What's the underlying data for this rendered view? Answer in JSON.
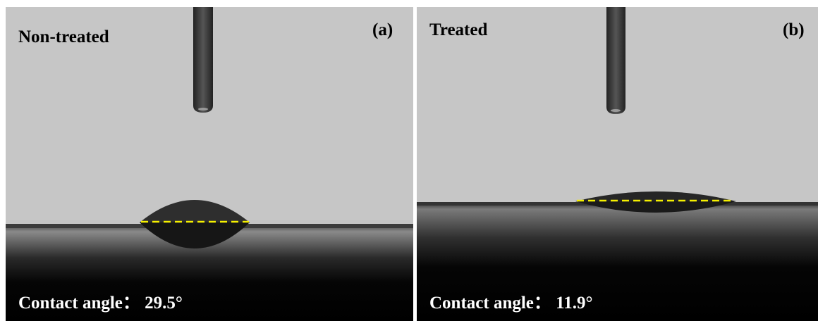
{
  "panels": [
    {
      "label": "Non-treated",
      "tag": "(a)",
      "caption": "Contact angle： 29.5°"
    },
    {
      "label": "Treated",
      "tag": "(b)",
      "caption": "Contact angle： 11.9°"
    }
  ]
}
